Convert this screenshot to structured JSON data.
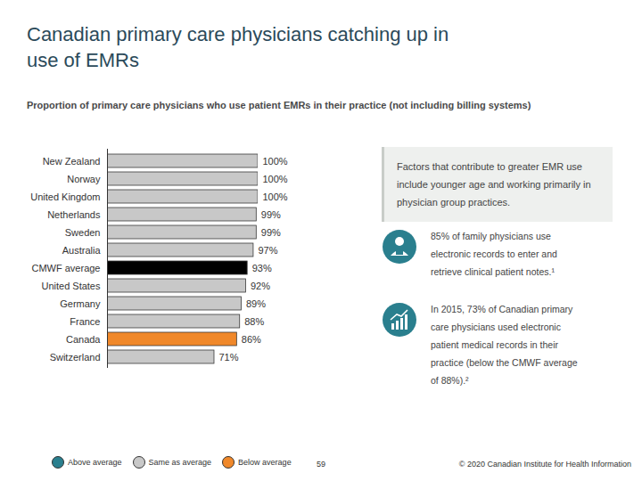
{
  "chart_data": {
    "type": "bar",
    "title": "Canadian primary care physicians catching up in use of EMRs",
    "subtitle": "Proportion of primary care physicians who use patient EMRs in their practice (not including billing systems)",
    "orientation": "horizontal",
    "categories": [
      "New Zealand",
      "Norway",
      "United Kingdom",
      "Netherlands",
      "Sweden",
      "Australia",
      "CMWF average",
      "United States",
      "Germany",
      "France",
      "Canada",
      "Switzerland"
    ],
    "values": [
      100,
      100,
      100,
      99,
      99,
      97,
      93,
      92,
      89,
      88,
      86,
      71
    ],
    "value_labels": [
      "100%",
      "100%",
      "100%",
      "99%",
      "99%",
      "97%",
      "93%",
      "92%",
      "89%",
      "88%",
      "86%",
      "71%"
    ],
    "colors": [
      "#c8c8c8",
      "#c8c8c8",
      "#c8c8c8",
      "#c8c8c8",
      "#c8c8c8",
      "#c8c8c8",
      "#000000",
      "#c8c8c8",
      "#c8c8c8",
      "#c8c8c8",
      "#f0882a",
      "#c8c8c8"
    ],
    "xlim": [
      0,
      100
    ],
    "xticks": [],
    "grid": false,
    "data_labels": true,
    "tick_labels": "y",
    "legend": "bottom",
    "legend_entries": [
      {
        "label": "Above average",
        "color": "#2a7f8e"
      },
      {
        "label": "Same as average",
        "color": "#c8c8c8"
      },
      {
        "label": "Below average",
        "color": "#f0882a"
      }
    ],
    "annotations": {
      "box": "Factors that contribute to greater EMR use include younger age and working primarily in physician group practices.",
      "notes": [
        "85% of family physicians use electronic records to enter and retrieve clinical patient notes.¹",
        "In 2015, 73% of Canadian primary care physicians used electronic patient medical records in their practice (below the CMWF average of 88%).²"
      ]
    },
    "footer": {
      "page_number": "59",
      "copyright": "© 2020 Canadian Institute for Health Information"
    }
  }
}
